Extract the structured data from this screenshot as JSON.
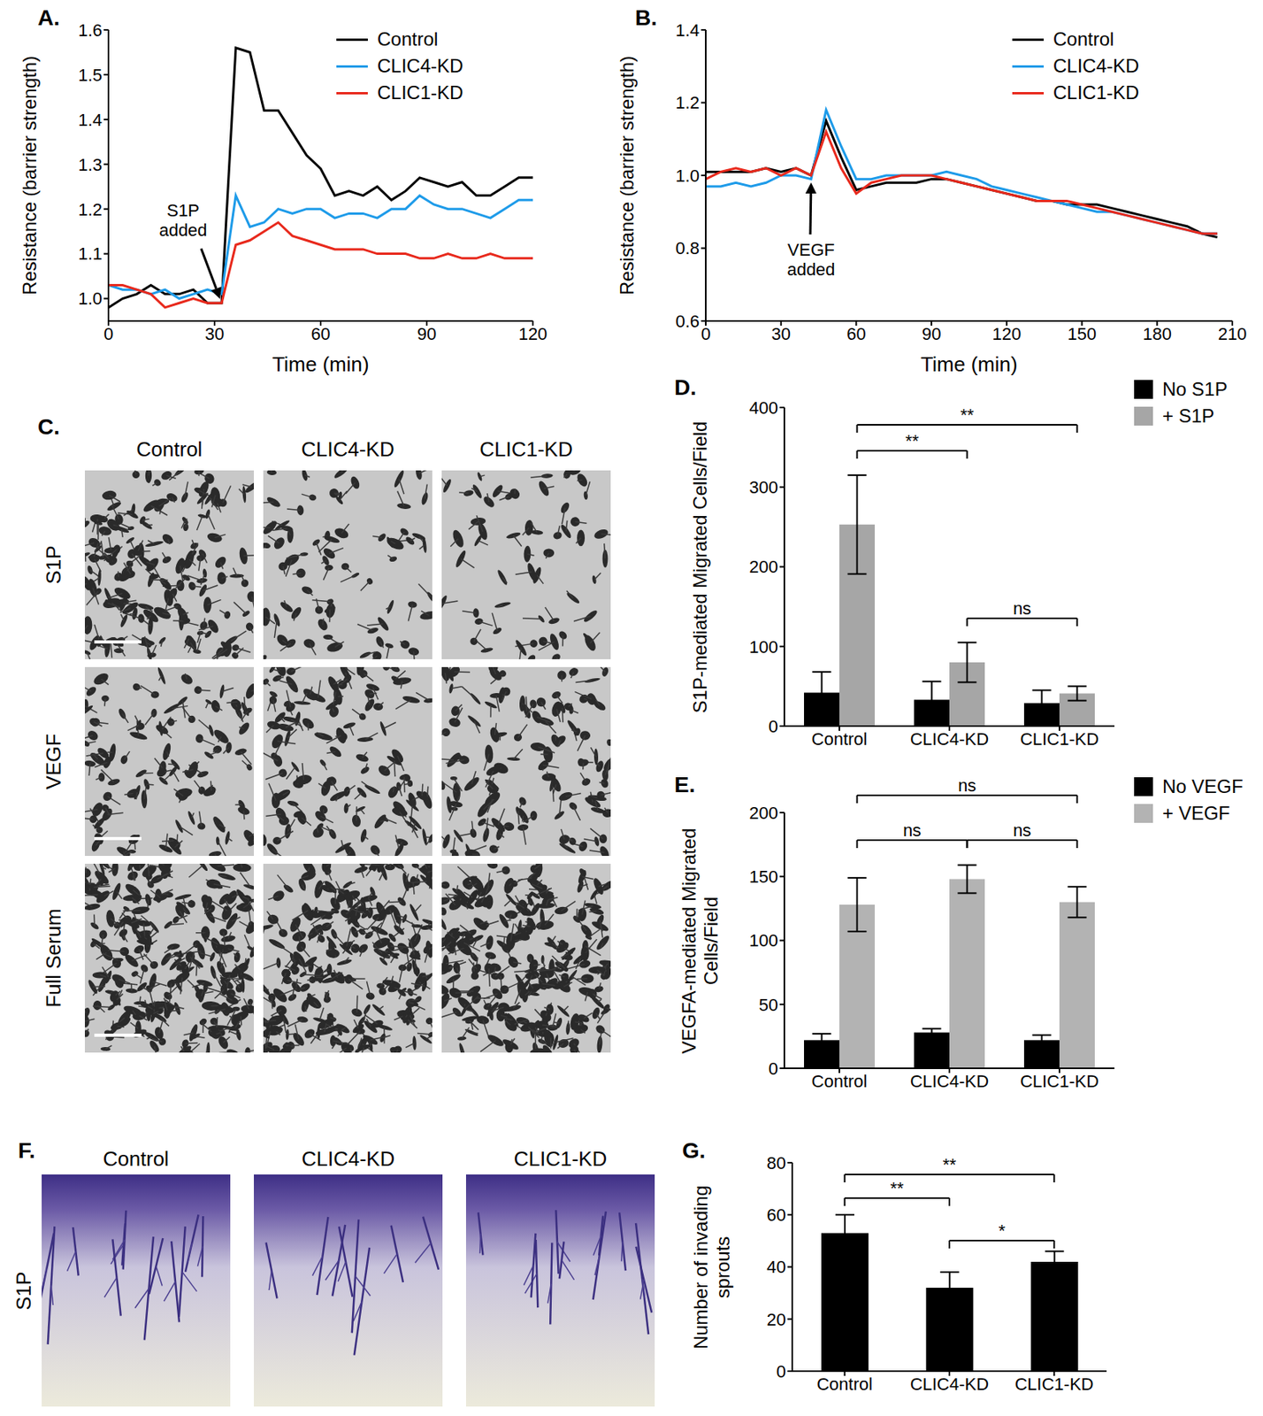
{
  "chart_data": [
    {
      "type": "line",
      "title": "A.",
      "xlabel": "Time (min)",
      "ylabel": "Resistance (barrier strength)",
      "annotations": [
        {
          "text": "S1P added"
        }
      ],
      "x": [
        0,
        4,
        8,
        12,
        16,
        20,
        24,
        28,
        32,
        36,
        40,
        44,
        48,
        52,
        56,
        60,
        64,
        68,
        72,
        76,
        80,
        84,
        88,
        92,
        96,
        100,
        104,
        108,
        112,
        116,
        120
      ],
      "xlim": [
        0,
        120
      ],
      "xticks": [
        0,
        30,
        60,
        90,
        120
      ],
      "ylim": [
        0.95,
        1.6
      ],
      "yticks": [
        {
          "value": 1,
          "label": "1.0"
        },
        1.1,
        1.2,
        1.3,
        1.4,
        1.5,
        1.6
      ],
      "legend": "upper-right",
      "grid": false,
      "series": [
        {
          "name": "Control",
          "color": "#000000",
          "values": [
            0.98,
            1.0,
            1.01,
            1.03,
            1.01,
            1.01,
            1.02,
            0.99,
            0.99,
            1.56,
            1.55,
            1.42,
            1.42,
            1.37,
            1.32,
            1.29,
            1.23,
            1.24,
            1.23,
            1.25,
            1.22,
            1.24,
            1.27,
            1.26,
            1.25,
            1.26,
            1.23,
            1.23,
            1.25,
            1.27,
            1.27
          ]
        },
        {
          "name": "CLIC4-KD",
          "color": "#1e9be9",
          "values": [
            1.03,
            1.02,
            1.02,
            1.01,
            1.02,
            1.0,
            1.01,
            1.02,
            1.01,
            1.23,
            1.16,
            1.17,
            1.2,
            1.19,
            1.2,
            1.2,
            1.18,
            1.19,
            1.19,
            1.18,
            1.2,
            1.2,
            1.23,
            1.21,
            1.2,
            1.2,
            1.19,
            1.18,
            1.2,
            1.22,
            1.22
          ]
        },
        {
          "name": "CLIC1-KD",
          "color": "#e8291c",
          "values": [
            1.03,
            1.03,
            1.02,
            1.01,
            0.98,
            0.99,
            1.0,
            0.99,
            0.99,
            1.12,
            1.13,
            1.15,
            1.17,
            1.14,
            1.13,
            1.12,
            1.11,
            1.11,
            1.11,
            1.1,
            1.1,
            1.1,
            1.09,
            1.09,
            1.1,
            1.09,
            1.09,
            1.1,
            1.09,
            1.09,
            1.09
          ]
        }
      ]
    },
    {
      "type": "line",
      "title": "B.",
      "xlabel": "Time (min)",
      "ylabel": "Resistance (barrier strength)",
      "annotations": [
        {
          "text": "VEGF added"
        }
      ],
      "x": [
        0,
        6,
        12,
        18,
        24,
        30,
        36,
        42,
        48,
        54,
        60,
        66,
        72,
        78,
        84,
        90,
        96,
        102,
        108,
        114,
        120,
        126,
        132,
        138,
        144,
        150,
        156,
        162,
        168,
        174,
        180,
        186,
        192,
        198,
        204
      ],
      "xlim": [
        0,
        210
      ],
      "xticks": [
        0,
        30,
        60,
        90,
        120,
        150,
        180,
        210
      ],
      "ylim": [
        0.6,
        1.4
      ],
      "yticks": [
        0.6,
        0.8,
        {
          "value": 1,
          "label": "1.0"
        },
        1.2,
        1.4
      ],
      "legend": "upper-right",
      "grid": false,
      "series": [
        {
          "name": "Control",
          "color": "#000000",
          "values": [
            1.01,
            1.01,
            1.01,
            1.01,
            1.02,
            1.01,
            1.02,
            1.0,
            1.15,
            1.05,
            0.96,
            0.97,
            0.98,
            0.98,
            0.98,
            0.99,
            0.99,
            0.98,
            0.97,
            0.96,
            0.95,
            0.94,
            0.93,
            0.93,
            0.92,
            0.92,
            0.92,
            0.91,
            0.9,
            0.89,
            0.88,
            0.87,
            0.86,
            0.84,
            0.83
          ]
        },
        {
          "name": "CLIC4-KD",
          "color": "#1e9be9",
          "values": [
            0.97,
            0.97,
            0.98,
            0.97,
            0.98,
            1.0,
            1.0,
            0.99,
            1.18,
            1.08,
            0.99,
            0.99,
            1.0,
            1.0,
            1.0,
            1.0,
            1.01,
            1.0,
            0.99,
            0.97,
            0.96,
            0.95,
            0.94,
            0.93,
            0.92,
            0.91,
            0.9,
            0.9,
            0.89,
            0.88,
            0.87,
            0.86,
            0.85,
            0.84,
            0.84
          ]
        },
        {
          "name": "CLIC1-KD",
          "color": "#e8291c",
          "values": [
            0.99,
            1.01,
            1.02,
            1.01,
            1.02,
            1.0,
            1.02,
            1.0,
            1.12,
            1.02,
            0.95,
            0.98,
            0.99,
            1.0,
            1.0,
            1.0,
            0.99,
            0.98,
            0.97,
            0.96,
            0.95,
            0.94,
            0.93,
            0.93,
            0.93,
            0.92,
            0.91,
            0.9,
            0.89,
            0.88,
            0.87,
            0.86,
            0.85,
            0.84,
            0.84
          ]
        }
      ]
    },
    {
      "type": "image_grid",
      "title": "C.",
      "columns": [
        "Control",
        "CLIC4-KD",
        "CLIC1-KD"
      ],
      "rows": [
        "S1P",
        "VEGF",
        "Full Serum"
      ]
    },
    {
      "type": "bar",
      "title": "D.",
      "ylabel": "S1P-mediated Migrated Cells/Field",
      "categories": [
        "Control",
        "CLIC4-KD",
        "CLIC1-KD"
      ],
      "series": [
        {
          "name": "No S1P",
          "color": "#000000",
          "values": [
            42,
            33,
            29
          ],
          "errors": [
            26,
            23,
            16
          ]
        },
        {
          "name": "+ S1P",
          "color": "#a6a6a6",
          "values": [
            253,
            80,
            41
          ],
          "errors": [
            62,
            25,
            9
          ]
        }
      ],
      "ylim": [
        0,
        400
      ],
      "yticks": [
        0,
        100,
        200,
        300,
        400
      ],
      "legend": "upper-right",
      "grid": false,
      "annotations": [
        {
          "text": "**",
          "from": "Control",
          "to": "CLIC1-KD"
        },
        {
          "text": "**",
          "from": "Control",
          "to": "CLIC4-KD"
        },
        {
          "text": "ns",
          "from": "CLIC4-KD",
          "to": "CLIC1-KD"
        }
      ]
    },
    {
      "type": "bar",
      "title": "E.",
      "ylabel": "VEGFA-mediated Migrated Cells/Field",
      "categories": [
        "Control",
        "CLIC4-KD",
        "CLIC1-KD"
      ],
      "series": [
        {
          "name": "No VEGF",
          "color": "#000000",
          "values": [
            22,
            28,
            22
          ],
          "errors": [
            5,
            3,
            4
          ]
        },
        {
          "name": "+ VEGF",
          "color": "#b3b3b3",
          "values": [
            128,
            148,
            130
          ],
          "errors": [
            21,
            11,
            12
          ]
        }
      ],
      "ylim": [
        0,
        200
      ],
      "yticks": [
        0,
        50,
        100,
        150,
        200
      ],
      "legend": "upper-right",
      "grid": false,
      "annotations": [
        {
          "text": "ns",
          "from": "Control",
          "to": "CLIC1-KD"
        },
        {
          "text": "ns",
          "from": "Control",
          "to": "CLIC4-KD"
        },
        {
          "text": "ns",
          "from": "CLIC4-KD",
          "to": "CLIC1-KD"
        }
      ]
    },
    {
      "type": "image_grid",
      "title": "F.",
      "columns": [
        "Control",
        "CLIC4-KD",
        "CLIC1-KD"
      ],
      "rows": [
        "S1P"
      ]
    },
    {
      "type": "bar",
      "title": "G.",
      "ylabel": "Number of invading sprouts",
      "categories": [
        "Control",
        "CLIC4-KD",
        "CLIC1-KD"
      ],
      "values": [
        53,
        32,
        42
      ],
      "errors": [
        7,
        6,
        4
      ],
      "color": "#000000",
      "ylim": [
        0,
        80
      ],
      "yticks": [
        0,
        20,
        40,
        60,
        80
      ],
      "grid": false,
      "annotations": [
        {
          "text": "**",
          "from": "Control",
          "to": "CLIC1-KD"
        },
        {
          "text": "**",
          "from": "Control",
          "to": "CLIC4-KD"
        },
        {
          "text": "*",
          "from": "CLIC4-KD",
          "to": "CLIC1-KD"
        }
      ]
    }
  ]
}
